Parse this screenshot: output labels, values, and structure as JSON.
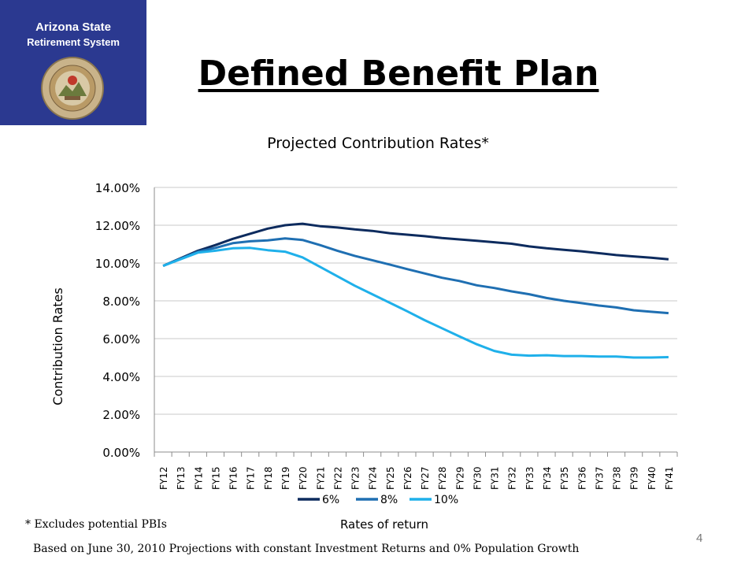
{
  "logo": {
    "line1": "Arizona State",
    "line2": "Retirement System"
  },
  "slide": {
    "title": "Defined Benefit Plan",
    "page_number": "4"
  },
  "notes": {
    "footnote": "* Excludes potential PBIs",
    "source": "Based on June 30, 2010 Projections with constant Investment Returns and 0% Population Growth"
  },
  "chart_data": {
    "type": "line",
    "title": "Projected Contribution Rates*",
    "xlabel": "Rates of return",
    "ylabel": "Contribution Rates",
    "ylim": [
      0,
      14
    ],
    "yticks": [
      "0.00%",
      "2.00%",
      "4.00%",
      "6.00%",
      "8.00%",
      "10.00%",
      "12.00%",
      "14.00%"
    ],
    "grid": true,
    "legend_position": "bottom",
    "categories": [
      "FY12",
      "FY13",
      "FY14",
      "FY15",
      "FY16",
      "FY17",
      "FY18",
      "FY19",
      "FY20",
      "FY21",
      "FY22",
      "FY23",
      "FY24",
      "FY25",
      "FY26",
      "FY27",
      "FY28",
      "FY29",
      "FY30",
      "FY31",
      "FY32",
      "FY33",
      "FY34",
      "FY35",
      "FY36",
      "FY37",
      "FY38",
      "FY39",
      "FY40",
      "FY41"
    ],
    "series": [
      {
        "name": "6%",
        "color": "#0d2b5e",
        "values": [
          9.85,
          10.25,
          10.65,
          10.95,
          11.28,
          11.55,
          11.82,
          12.0,
          12.08,
          11.95,
          11.88,
          11.78,
          11.7,
          11.58,
          11.5,
          11.42,
          11.32,
          11.25,
          11.18,
          11.1,
          11.02,
          10.88,
          10.78,
          10.7,
          10.62,
          10.52,
          10.42,
          10.35,
          10.28,
          10.2
        ]
      },
      {
        "name": "8%",
        "color": "#1f6fb2",
        "values": [
          9.85,
          10.22,
          10.6,
          10.8,
          11.05,
          11.15,
          11.2,
          11.3,
          11.22,
          10.95,
          10.65,
          10.38,
          10.15,
          9.92,
          9.68,
          9.45,
          9.22,
          9.05,
          8.82,
          8.68,
          8.5,
          8.35,
          8.15,
          8.0,
          7.88,
          7.75,
          7.65,
          7.5,
          7.42,
          7.35
        ]
      },
      {
        "name": "10%",
        "color": "#1fb0ea",
        "values": [
          9.85,
          10.2,
          10.55,
          10.65,
          10.78,
          10.8,
          10.68,
          10.6,
          10.3,
          9.8,
          9.3,
          8.8,
          8.35,
          7.9,
          7.45,
          6.98,
          6.55,
          6.12,
          5.7,
          5.35,
          5.15,
          5.1,
          5.12,
          5.08,
          5.08,
          5.05,
          5.05,
          5.0,
          5.0,
          5.02
        ]
      }
    ]
  }
}
